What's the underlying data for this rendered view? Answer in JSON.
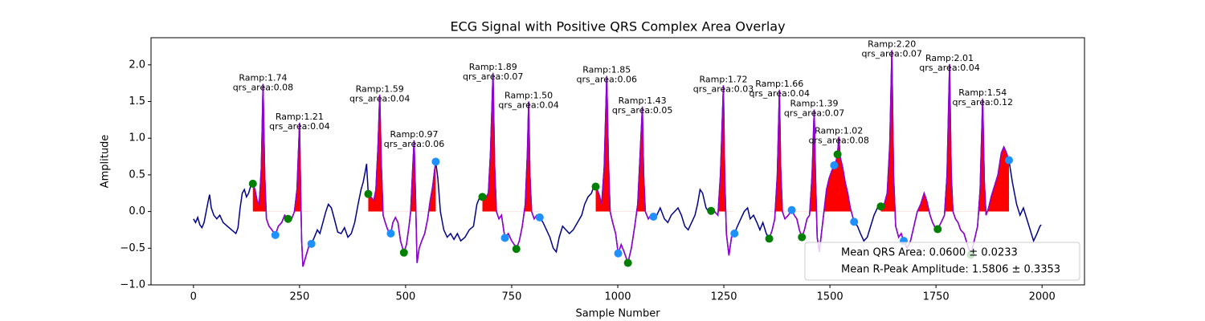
{
  "chart_data": {
    "type": "line",
    "title": "ECG Signal with Positive QRS Complex Area Overlay",
    "x_label": "Sample Number",
    "y_label": "Amplitude",
    "xlim": [
      -100,
      2100
    ],
    "ylim": [
      -1.0,
      2.37
    ],
    "xticks": [
      0,
      250,
      500,
      750,
      1000,
      1250,
      1500,
      1750,
      2000
    ],
    "yticks": [
      {
        "value": -1.0,
        "label": "−1.0"
      },
      {
        "value": -0.5,
        "label": "−0.5"
      },
      {
        "value": 0.0,
        "label": "0.0"
      },
      0.5,
      {
        "value": 1.0,
        "label": "1.0"
      },
      1.5,
      {
        "value": 2.0,
        "label": "2.0"
      }
    ],
    "x": [
      0,
      5,
      10,
      15,
      20,
      25,
      30,
      35,
      38,
      42,
      48,
      55,
      62,
      70,
      80,
      90,
      100,
      105,
      110,
      115,
      120,
      125,
      130,
      135,
      140,
      145,
      150,
      155,
      160,
      164,
      168,
      172,
      178,
      185,
      193,
      200,
      208,
      215,
      223,
      230,
      238,
      244,
      248,
      250,
      252,
      255,
      258,
      263,
      268,
      273,
      278,
      285,
      292,
      298,
      305,
      312,
      318,
      325,
      332,
      340,
      348,
      356,
      364,
      372,
      380,
      388,
      395,
      400,
      405,
      408,
      412,
      418,
      425,
      430,
      435,
      439,
      443,
      447,
      452,
      458,
      465,
      470,
      476,
      482,
      488,
      496,
      502,
      508,
      512,
      516,
      520,
      523,
      527,
      532,
      538,
      545,
      552,
      558,
      564,
      568,
      571,
      576,
      582,
      590,
      598,
      606,
      614,
      622,
      630,
      640,
      650,
      660,
      668,
      675,
      681,
      688,
      695,
      700,
      706,
      710,
      714,
      720,
      726,
      734,
      742,
      750,
      756,
      761,
      768,
      775,
      782,
      787,
      790,
      793,
      797,
      803,
      809,
      816,
      824,
      832,
      840,
      848,
      855,
      862,
      870,
      878,
      886,
      895,
      905,
      915,
      922,
      930,
      938,
      944,
      948,
      955,
      962,
      968,
      974,
      978,
      982,
      988,
      995,
      1001,
      1008,
      1015,
      1024,
      1032,
      1040,
      1047,
      1052,
      1058,
      1061,
      1065,
      1072,
      1078,
      1084,
      1092,
      1100,
      1110,
      1118,
      1126,
      1134,
      1142,
      1150,
      1158,
      1166,
      1174,
      1182,
      1188,
      1194,
      1200,
      1208,
      1214,
      1220,
      1228,
      1236,
      1242,
      1249,
      1252,
      1256,
      1262,
      1268,
      1275,
      1282,
      1290,
      1298,
      1306,
      1312,
      1320,
      1328,
      1335,
      1342,
      1350,
      1357,
      1364,
      1370,
      1376,
      1381,
      1384,
      1388,
      1394,
      1402,
      1410,
      1416,
      1422,
      1428,
      1434,
      1440,
      1446,
      1452,
      1458,
      1463,
      1466,
      1470,
      1475,
      1480,
      1486,
      1492,
      1498,
      1504,
      1510,
      1515,
      1518,
      1521,
      1524,
      1530,
      1536,
      1542,
      1548,
      1557,
      1565,
      1572,
      1580,
      1588,
      1596,
      1604,
      1612,
      1620,
      1628,
      1635,
      1641,
      1646,
      1650,
      1655,
      1662,
      1668,
      1674,
      1682,
      1690,
      1698,
      1706,
      1714,
      1722,
      1728,
      1736,
      1742,
      1748,
      1754,
      1762,
      1770,
      1776,
      1782,
      1786,
      1790,
      1796,
      1802,
      1808,
      1816,
      1824,
      1832,
      1840,
      1848,
      1854,
      1860,
      1864,
      1868,
      1874,
      1880,
      1888,
      1896,
      1904,
      1910,
      1916,
      1922,
      1930,
      1940,
      1948,
      1956,
      1964,
      1972,
      1980,
      1988,
      1995,
      1998
    ],
    "series": [
      {
        "color": "#00008b",
        "values": [
          -0.1,
          -0.15,
          -0.08,
          -0.18,
          -0.22,
          -0.15,
          0.0,
          0.15,
          0.23,
          0.05,
          -0.05,
          -0.1,
          -0.05,
          -0.15,
          -0.2,
          -0.25,
          -0.3,
          -0.22,
          0.05,
          0.25,
          0.3,
          0.2,
          0.25,
          0.35,
          0.38,
          0.3,
          0.15,
          0.1,
          0.6,
          1.74,
          0.5,
          -0.1,
          -0.2,
          -0.25,
          -0.32,
          -0.2,
          -0.15,
          -0.05,
          -0.1,
          -0.12,
          0.0,
          0.3,
          0.9,
          1.21,
          0.5,
          -0.4,
          -0.75,
          -0.65,
          -0.55,
          -0.45,
          -0.44,
          -0.35,
          -0.25,
          -0.3,
          -0.15,
          0.0,
          0.1,
          0.05,
          -0.1,
          -0.28,
          -0.3,
          -0.22,
          -0.35,
          -0.3,
          -0.15,
          0.1,
          0.3,
          0.4,
          0.55,
          0.65,
          0.24,
          0.2,
          0.15,
          0.3,
          0.9,
          1.59,
          0.6,
          -0.05,
          -0.15,
          -0.25,
          -0.3,
          -0.15,
          -0.08,
          -0.15,
          -0.4,
          -0.56,
          -0.45,
          -0.2,
          0.0,
          0.5,
          0.97,
          0.3,
          -0.7,
          -0.5,
          -0.4,
          -0.3,
          -0.1,
          0.15,
          0.35,
          0.55,
          0.68,
          0.45,
          0.0,
          -0.25,
          -0.35,
          -0.3,
          -0.38,
          -0.3,
          -0.4,
          -0.35,
          -0.25,
          -0.2,
          0.1,
          0.2,
          0.2,
          0.18,
          0.25,
          0.8,
          1.89,
          0.6,
          0.0,
          -0.1,
          -0.05,
          -0.36,
          -0.3,
          -0.4,
          -0.45,
          -0.51,
          -0.4,
          -0.2,
          0.1,
          0.8,
          1.5,
          0.5,
          0.0,
          -0.1,
          -0.05,
          -0.08,
          -0.15,
          -0.25,
          -0.35,
          -0.5,
          -0.55,
          -0.35,
          -0.2,
          -0.25,
          -0.3,
          -0.25,
          -0.15,
          -0.05,
          0.1,
          0.2,
          0.25,
          0.35,
          0.34,
          0.25,
          0.1,
          0.6,
          1.85,
          0.7,
          0.0,
          -0.15,
          -0.3,
          -0.57,
          -0.45,
          -0.55,
          -0.7,
          -0.5,
          -0.2,
          0.1,
          0.7,
          1.43,
          0.5,
          0.0,
          -0.1,
          -0.05,
          -0.07,
          -0.05,
          0.05,
          -0.1,
          -0.15,
          -0.05,
          0.0,
          0.05,
          -0.05,
          -0.2,
          -0.25,
          -0.15,
          -0.05,
          0.1,
          0.3,
          0.25,
          0.05,
          0.0,
          0.01,
          0.0,
          -0.05,
          0.5,
          1.72,
          0.5,
          -0.3,
          -0.6,
          -0.35,
          -0.3,
          -0.2,
          -0.1,
          0.0,
          0.05,
          -0.1,
          -0.05,
          -0.15,
          -0.25,
          -0.15,
          -0.3,
          -0.37,
          -0.25,
          -0.1,
          0.5,
          1.66,
          0.6,
          0.0,
          -0.1,
          -0.05,
          0.02,
          -0.05,
          -0.1,
          -0.25,
          -0.35,
          -0.25,
          -0.1,
          -0.05,
          0.5,
          1.39,
          0.5,
          -0.35,
          -0.55,
          -0.3,
          0.0,
          0.3,
          0.45,
          0.55,
          0.63,
          0.7,
          0.78,
          1.02,
          0.75,
          0.6,
          0.4,
          0.25,
          0.05,
          -0.14,
          -0.2,
          -0.3,
          -0.4,
          -0.35,
          -0.2,
          -0.05,
          0.05,
          0.07,
          0.1,
          0.25,
          0.9,
          2.2,
          0.5,
          -0.2,
          -0.35,
          -0.3,
          -0.4,
          -0.5,
          -0.4,
          -0.2,
          0.0,
          0.1,
          0.25,
          0.15,
          -0.05,
          -0.15,
          -0.22,
          -0.24,
          -0.15,
          -0.05,
          0.5,
          2.01,
          0.5,
          0.0,
          -0.1,
          -0.15,
          -0.25,
          -0.3,
          -0.45,
          -0.59,
          -0.4,
          -0.2,
          0.3,
          1.54,
          0.4,
          -0.05,
          0.05,
          0.2,
          0.35,
          0.5,
          0.8,
          0.88,
          0.8,
          0.7,
          0.4,
          0.1,
          -0.05,
          0.05,
          -0.1,
          -0.25,
          -0.4,
          -0.3,
          -0.2,
          -0.18
        ]
      }
    ],
    "qrs_overlay": {
      "color": "#9400d3",
      "fill_color": "#ff0000",
      "ranges": [
        [
          140,
          280
        ],
        [
          412,
          571
        ],
        [
          681,
          816
        ],
        [
          948,
          1084
        ],
        [
          1220,
          1275
        ],
        [
          1357,
          1557
        ],
        [
          1620,
          1922
        ]
      ]
    },
    "onsets": {
      "color": "#008000",
      "x": [
        140,
        223,
        412,
        496,
        681,
        761,
        948,
        1024,
        1220,
        1357,
        1434,
        1518,
        1620,
        1754,
        1832
      ],
      "y": [
        0.38,
        -0.1,
        0.24,
        -0.56,
        0.2,
        -0.51,
        0.34,
        -0.7,
        0.01,
        -0.37,
        -0.35,
        0.78,
        0.07,
        -0.24,
        -0.59
      ]
    },
    "offsets": {
      "color": "#1e90ff",
      "x": [
        193,
        278,
        465,
        571,
        734,
        816,
        1001,
        1084,
        1275,
        1410,
        1510,
        1557,
        1674,
        1922
      ],
      "y": [
        -0.32,
        -0.44,
        -0.3,
        0.68,
        -0.36,
        -0.08,
        -0.57,
        -0.07,
        -0.3,
        0.02,
        0.63,
        -0.14,
        -0.4,
        0.7
      ]
    },
    "annotations": [
      {
        "x": 164,
        "y": 1.74,
        "lines": [
          "Ramp:1.74",
          "qrs_area:0.08"
        ]
      },
      {
        "x": 250,
        "y": 1.21,
        "lines": [
          "Ramp:1.21",
          "qrs_area:0.04"
        ]
      },
      {
        "x": 439,
        "y": 1.59,
        "lines": [
          "Ramp:1.59",
          "qrs_area:0.04"
        ]
      },
      {
        "x": 520,
        "y": 0.97,
        "lines": [
          "Ramp:0.97",
          "qrs_area:0.06"
        ]
      },
      {
        "x": 706,
        "y": 1.89,
        "lines": [
          "Ramp:1.89",
          "qrs_area:0.07"
        ]
      },
      {
        "x": 790,
        "y": 1.5,
        "lines": [
          "Ramp:1.50",
          "qrs_area:0.04"
        ]
      },
      {
        "x": 974,
        "y": 1.85,
        "lines": [
          "Ramp:1.85",
          "qrs_area:0.06"
        ]
      },
      {
        "x": 1058,
        "y": 1.43,
        "lines": [
          "Ramp:1.43",
          "qrs_area:0.05"
        ]
      },
      {
        "x": 1249,
        "y": 1.72,
        "lines": [
          "Ramp:1.72",
          "qrs_area:0.03"
        ]
      },
      {
        "x": 1381,
        "y": 1.66,
        "lines": [
          "Ramp:1.66",
          "qrs_area:0.04"
        ]
      },
      {
        "x": 1463,
        "y": 1.39,
        "lines": [
          "Ramp:1.39",
          "qrs_area:0.07"
        ]
      },
      {
        "x": 1521,
        "y": 1.02,
        "lines": [
          "Ramp:1.02",
          "qrs_area:0.08"
        ]
      },
      {
        "x": 1646,
        "y": 2.2,
        "lines": [
          "Ramp:2.20",
          "qrs_area:0.07"
        ]
      },
      {
        "x": 1782,
        "y": 2.01,
        "lines": [
          "Ramp:2.01",
          "qrs_area:0.04"
        ]
      },
      {
        "x": 1860,
        "y": 1.54,
        "lines": [
          "Ramp:1.54",
          "qrs_area:0.12"
        ]
      }
    ],
    "legend": {
      "position": "lower right",
      "entries": [
        "Mean QRS Area: 0.0600 ± 0.0233",
        "Mean R-Peak Amplitude: 1.5806 ± 0.3353"
      ]
    }
  }
}
